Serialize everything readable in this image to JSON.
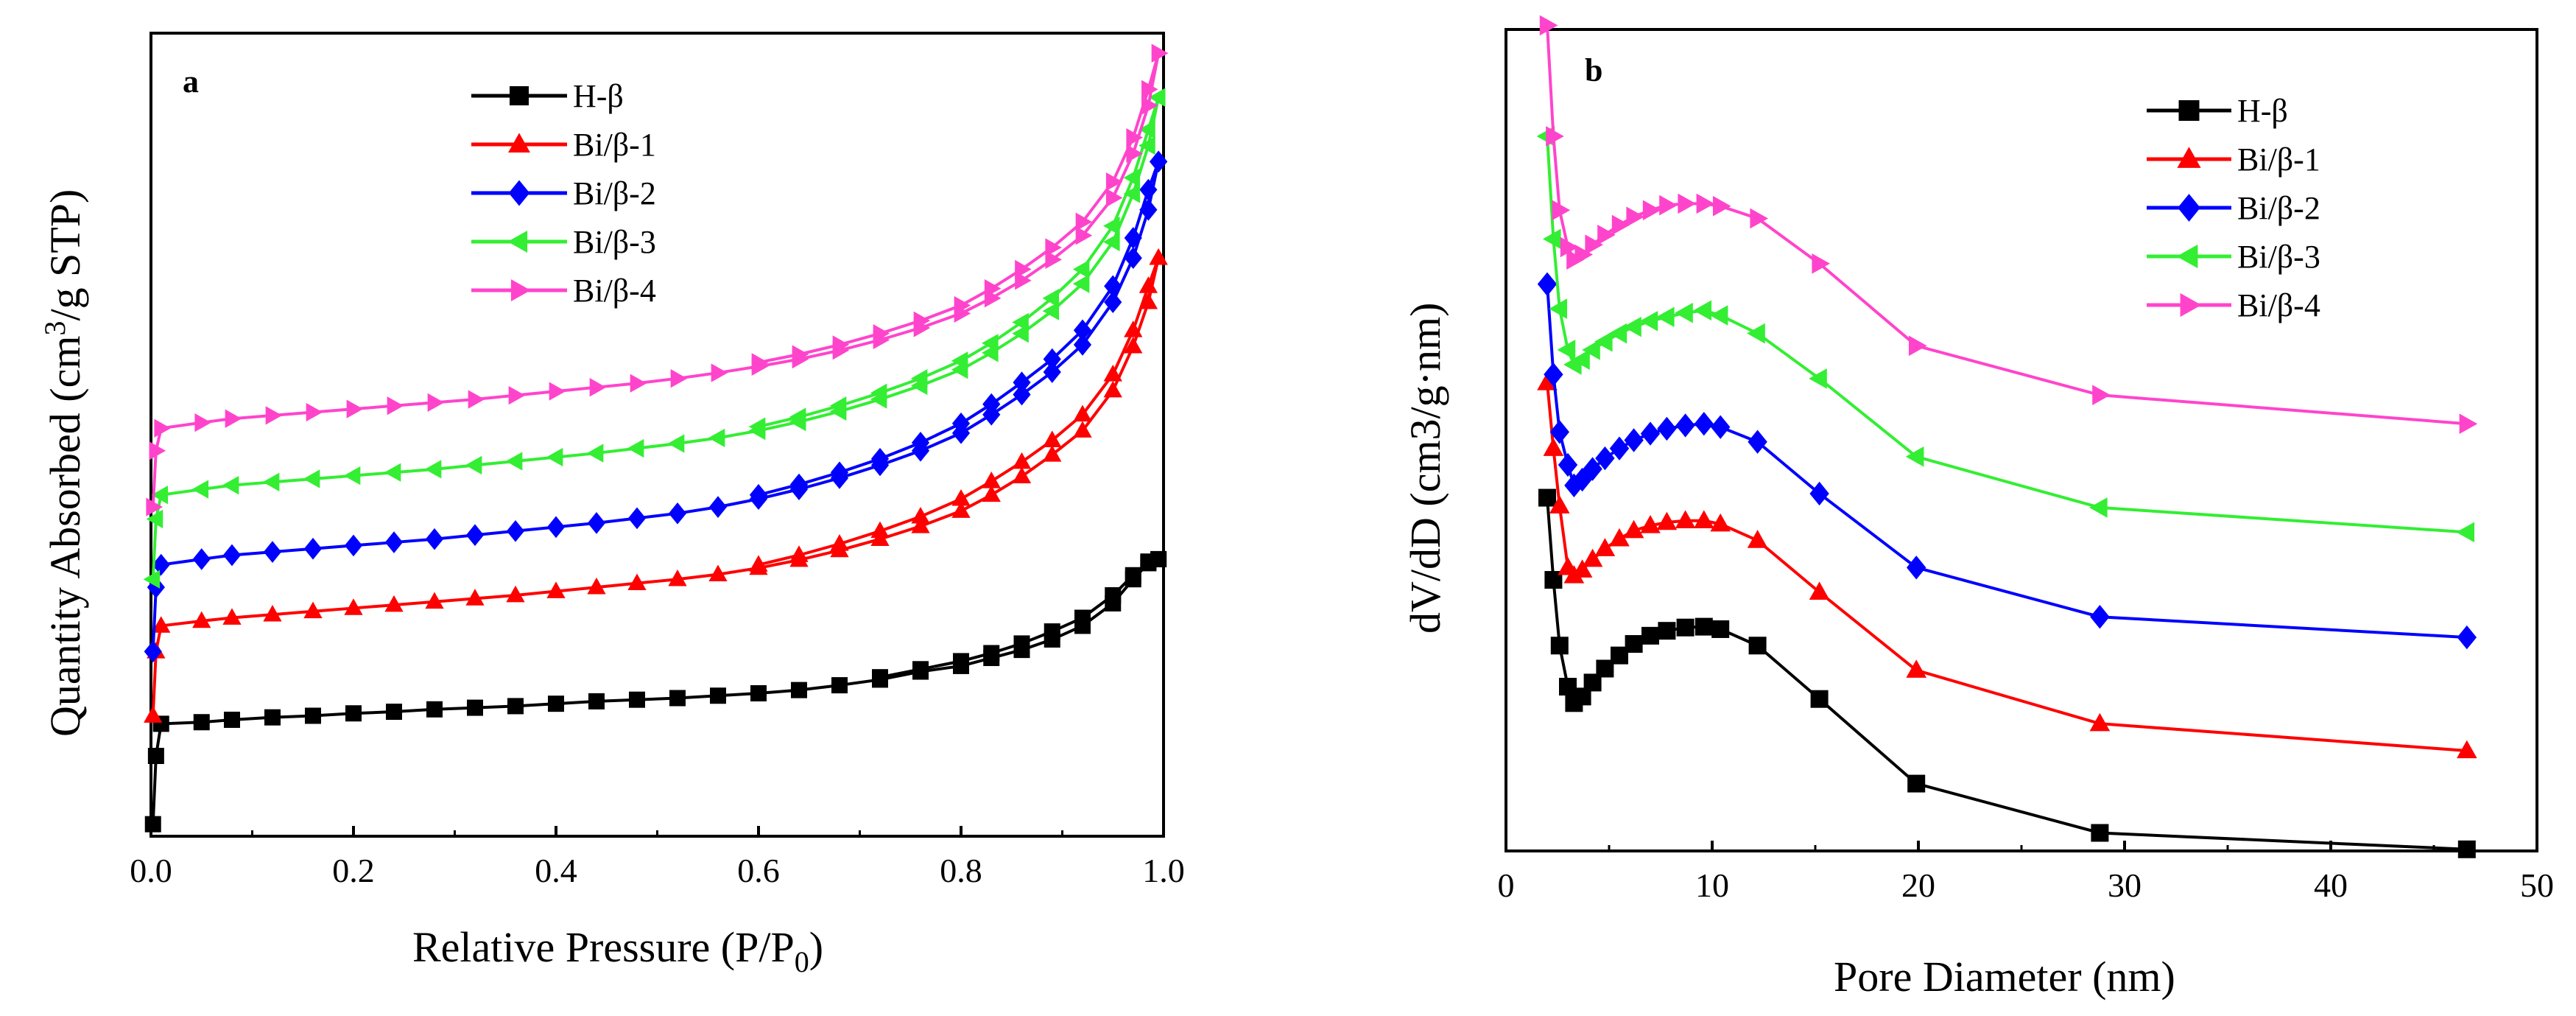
{
  "colors": {
    "black": "#000000",
    "red": "#ff0000",
    "blue": "#0000ff",
    "green": "#33ee33",
    "magenta": "#ff44cc"
  },
  "chart_data": [
    {
      "panel": "a",
      "type": "line",
      "xlabel": "Relative Pressure (P/P",
      "xlabel_sub": "0",
      "xlabel_end": ")",
      "ylabel": "Quantity Absorbed (cm",
      "ylabel_sup": "3",
      "ylabel_end": "/g STP)",
      "xlim": [
        0,
        1.0
      ],
      "ylim": [
        0,
        1000
      ],
      "xticks": [
        0,
        0.2,
        0.4,
        0.6,
        0.8,
        1.0
      ],
      "xtick_labels": [
        "0.0",
        "0.2",
        "0.4",
        "0.6",
        "0.8",
        "1.0"
      ],
      "yticks_labeled": false,
      "legend_position": "top-center",
      "series": [
        {
          "name": "H-β",
          "color": "#000000",
          "marker": "square",
          "x": [
            0.002,
            0.005,
            0.01,
            0.05,
            0.08,
            0.12,
            0.16,
            0.2,
            0.24,
            0.28,
            0.32,
            0.36,
            0.4,
            0.44,
            0.48,
            0.52,
            0.56,
            0.6,
            0.64,
            0.68,
            0.72,
            0.76,
            0.8,
            0.83,
            0.86,
            0.89,
            0.92,
            0.95,
            0.97,
            0.985,
            0.995
          ],
          "y": [
            15,
            100,
            140,
            142,
            145,
            148,
            150,
            153,
            155,
            158,
            160,
            162,
            165,
            168,
            170,
            172,
            175,
            178,
            182,
            188,
            195,
            205,
            212,
            222,
            232,
            245,
            262,
            290,
            320,
            340,
            345
          ],
          "desorption_y": [
            null,
            null,
            null,
            null,
            null,
            null,
            null,
            null,
            null,
            null,
            null,
            null,
            null,
            null,
            null,
            null,
            null,
            null,
            null,
            null,
            198,
            208,
            218,
            228,
            240,
            255,
            272,
            300,
            325,
            342,
            345
          ]
        },
        {
          "name": "Bi/β-1",
          "color": "#ff0000",
          "marker": "triangle-up",
          "x": [
            0.002,
            0.005,
            0.01,
            0.05,
            0.08,
            0.12,
            0.16,
            0.2,
            0.24,
            0.28,
            0.32,
            0.36,
            0.4,
            0.44,
            0.48,
            0.52,
            0.56,
            0.6,
            0.64,
            0.68,
            0.72,
            0.76,
            0.8,
            0.83,
            0.86,
            0.89,
            0.92,
            0.95,
            0.97,
            0.985,
            0.995
          ],
          "y": [
            150,
            230,
            262,
            268,
            272,
            276,
            280,
            284,
            288,
            292,
            296,
            300,
            305,
            310,
            315,
            320,
            326,
            334,
            344,
            356,
            370,
            386,
            405,
            425,
            448,
            475,
            505,
            555,
            610,
            665,
            720
          ],
          "desorption_y": [
            null,
            null,
            null,
            null,
            null,
            null,
            null,
            null,
            null,
            null,
            null,
            null,
            null,
            null,
            null,
            null,
            null,
            338,
            350,
            364,
            380,
            398,
            420,
            442,
            466,
            493,
            525,
            575,
            630,
            685,
            720
          ]
        },
        {
          "name": "Bi/β-2",
          "color": "#0000ff",
          "marker": "diamond",
          "x": [
            0.002,
            0.005,
            0.01,
            0.05,
            0.08,
            0.12,
            0.16,
            0.2,
            0.24,
            0.28,
            0.32,
            0.36,
            0.4,
            0.44,
            0.48,
            0.52,
            0.56,
            0.6,
            0.64,
            0.68,
            0.72,
            0.76,
            0.8,
            0.83,
            0.86,
            0.89,
            0.92,
            0.95,
            0.97,
            0.985,
            0.995
          ],
          "y": [
            230,
            310,
            338,
            345,
            350,
            354,
            358,
            362,
            366,
            370,
            375,
            380,
            385,
            390,
            396,
            402,
            410,
            420,
            432,
            446,
            462,
            480,
            502,
            525,
            550,
            578,
            612,
            665,
            720,
            780,
            840
          ],
          "desorption_y": [
            null,
            null,
            null,
            null,
            null,
            null,
            null,
            null,
            null,
            null,
            null,
            null,
            null,
            null,
            null,
            null,
            null,
            425,
            438,
            453,
            470,
            490,
            514,
            538,
            565,
            594,
            630,
            685,
            745,
            805,
            840
          ]
        },
        {
          "name": "Bi/β-3",
          "color": "#33ee33",
          "marker": "triangle-left",
          "x": [
            0.002,
            0.005,
            0.01,
            0.05,
            0.08,
            0.12,
            0.16,
            0.2,
            0.24,
            0.28,
            0.32,
            0.36,
            0.4,
            0.44,
            0.48,
            0.52,
            0.56,
            0.6,
            0.64,
            0.68,
            0.72,
            0.76,
            0.8,
            0.83,
            0.86,
            0.89,
            0.92,
            0.95,
            0.97,
            0.985,
            0.995
          ],
          "y": [
            320,
            395,
            425,
            432,
            437,
            441,
            445,
            449,
            453,
            457,
            462,
            467,
            472,
            477,
            483,
            489,
            496,
            505,
            516,
            529,
            544,
            561,
            581,
            602,
            626,
            654,
            688,
            740,
            800,
            860,
            920
          ],
          "desorption_y": [
            null,
            null,
            null,
            null,
            null,
            null,
            null,
            null,
            null,
            null,
            null,
            null,
            null,
            null,
            null,
            null,
            null,
            510,
            522,
            536,
            552,
            570,
            592,
            614,
            640,
            670,
            706,
            760,
            820,
            880,
            920
          ]
        },
        {
          "name": "Bi/β-4",
          "color": "#ff44cc",
          "marker": "triangle-right",
          "x": [
            0.002,
            0.005,
            0.01,
            0.05,
            0.08,
            0.12,
            0.16,
            0.2,
            0.24,
            0.28,
            0.32,
            0.36,
            0.4,
            0.44,
            0.48,
            0.52,
            0.56,
            0.6,
            0.64,
            0.68,
            0.72,
            0.76,
            0.8,
            0.83,
            0.86,
            0.89,
            0.92,
            0.95,
            0.97,
            0.985,
            0.995
          ],
          "y": [
            410,
            480,
            508,
            515,
            520,
            524,
            528,
            532,
            536,
            540,
            544,
            549,
            554,
            559,
            564,
            570,
            577,
            585,
            594,
            605,
            618,
            633,
            651,
            670,
            692,
            718,
            748,
            795,
            850,
            910,
            975
          ],
          "desorption_y": [
            null,
            null,
            null,
            null,
            null,
            null,
            null,
            null,
            null,
            null,
            null,
            null,
            null,
            null,
            null,
            null,
            null,
            590,
            600,
            612,
            626,
            642,
            661,
            682,
            706,
            733,
            765,
            815,
            870,
            930,
            975
          ]
        }
      ]
    },
    {
      "panel": "b",
      "type": "line",
      "xlabel": "Pore Diameter (nm)",
      "ylabel": "dV/dD (cm3/g·nm)",
      "xlim": [
        0,
        50
      ],
      "ylim": [
        0,
        1000
      ],
      "xticks": [
        0,
        10,
        20,
        30,
        40,
        50
      ],
      "xtick_labels": [
        "0",
        "10",
        "20",
        "30",
        "40",
        "50"
      ],
      "yticks_labeled": false,
      "legend_position": "top-right",
      "series": [
        {
          "name": "H-β",
          "color": "#000000",
          "marker": "square",
          "x": [
            2.0,
            2.3,
            2.6,
            3.0,
            3.3,
            3.7,
            4.2,
            4.8,
            5.5,
            6.2,
            7.0,
            7.8,
            8.7,
            9.6,
            10.4,
            12.2,
            15.2,
            19.9,
            28.8,
            46.6
          ],
          "y": [
            430,
            330,
            250,
            200,
            180,
            188,
            205,
            222,
            238,
            252,
            262,
            268,
            272,
            273,
            270,
            250,
            185,
            82,
            22,
            2
          ]
        },
        {
          "name": "Bi/β-1",
          "color": "#ff0000",
          "marker": "triangle-up",
          "x": [
            2.0,
            2.3,
            2.6,
            3.0,
            3.3,
            3.7,
            4.2,
            4.8,
            5.5,
            6.2,
            7.0,
            7.8,
            8.7,
            9.6,
            10.4,
            12.2,
            15.2,
            19.9,
            28.8,
            46.6
          ],
          "y": [
            570,
            490,
            420,
            345,
            335,
            342,
            355,
            368,
            380,
            390,
            396,
            400,
            402,
            402,
            398,
            378,
            315,
            220,
            155,
            122
          ]
        },
        {
          "name": "Bi/β-2",
          "color": "#0000ff",
          "marker": "diamond",
          "x": [
            2.0,
            2.3,
            2.6,
            3.0,
            3.3,
            3.7,
            4.2,
            4.8,
            5.5,
            6.2,
            7.0,
            7.8,
            8.7,
            9.6,
            10.4,
            12.2,
            15.2,
            19.9,
            28.8,
            46.6
          ],
          "y": [
            690,
            580,
            510,
            470,
            445,
            452,
            465,
            478,
            490,
            500,
            508,
            514,
            518,
            520,
            516,
            498,
            435,
            345,
            285,
            260
          ]
        },
        {
          "name": "Bi/β-3",
          "color": "#33ee33",
          "marker": "triangle-left",
          "x": [
            2.0,
            2.3,
            2.6,
            3.0,
            3.3,
            3.7,
            4.2,
            4.8,
            5.5,
            6.2,
            7.0,
            7.8,
            8.7,
            9.6,
            10.4,
            12.2,
            15.2,
            19.9,
            28.8,
            46.6
          ],
          "y": [
            870,
            745,
            660,
            610,
            592,
            598,
            610,
            620,
            630,
            638,
            645,
            650,
            655,
            658,
            652,
            630,
            575,
            480,
            418,
            388
          ]
        },
        {
          "name": "Bi/β-4",
          "color": "#ff44cc",
          "marker": "triangle-right",
          "x": [
            2.0,
            2.3,
            2.6,
            3.0,
            3.3,
            3.7,
            4.2,
            4.8,
            5.5,
            6.2,
            7.0,
            7.8,
            8.7,
            9.6,
            10.4,
            12.2,
            15.2,
            19.9,
            28.8,
            46.6
          ],
          "y": [
            1005,
            870,
            780,
            735,
            720,
            726,
            738,
            750,
            762,
            772,
            780,
            786,
            788,
            788,
            785,
            770,
            715,
            615,
            555,
            520
          ]
        }
      ]
    }
  ]
}
